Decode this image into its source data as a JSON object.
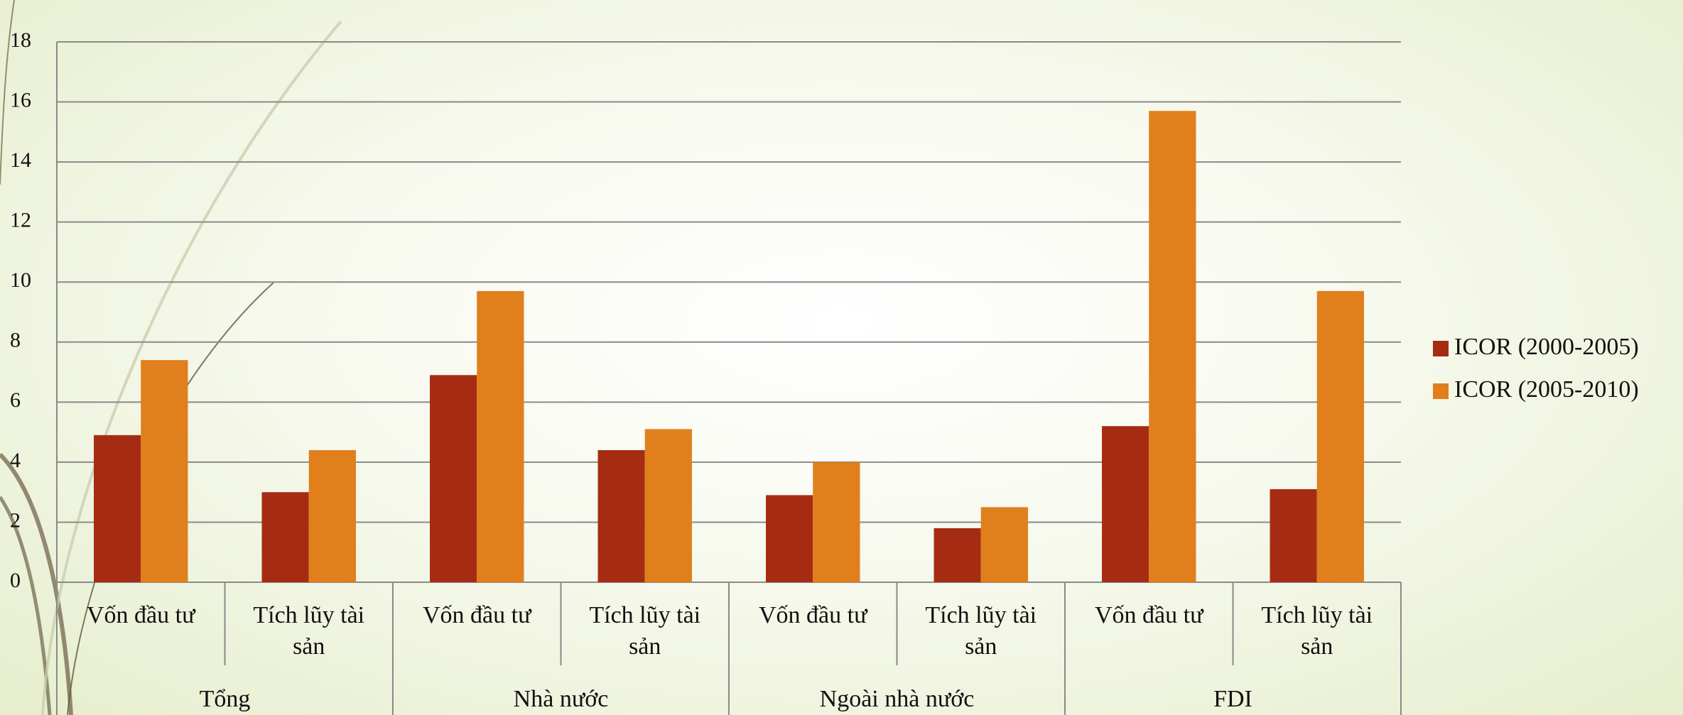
{
  "chart_data": {
    "type": "bar",
    "groups": [
      "Tổng",
      "Nhà nước",
      "Ngoài nhà nước",
      "FDI"
    ],
    "categories": [
      "Vốn đầu tư",
      "Tích lũy tài sản",
      "Vốn đầu tư",
      "Tích lũy tài sản",
      "Vốn đầu tư",
      "Tích lũy tài sản",
      "Vốn đầu tư",
      "Tích lũy tài sản"
    ],
    "series": [
      {
        "name": "ICOR (2000-2005)",
        "color": "#a52c12",
        "values": [
          4.9,
          3.0,
          6.9,
          4.4,
          2.9,
          1.8,
          5.2,
          3.1
        ]
      },
      {
        "name": "ICOR (2005-2010)",
        "color": "#e07f1c",
        "values": [
          7.4,
          4.4,
          9.7,
          5.1,
          4.0,
          2.5,
          15.7,
          9.7
        ]
      }
    ],
    "ylim": [
      0,
      18
    ],
    "yticks": [
      0,
      2,
      4,
      6,
      8,
      10,
      12,
      14,
      16,
      18
    ],
    "grid": true,
    "legend": "right"
  }
}
